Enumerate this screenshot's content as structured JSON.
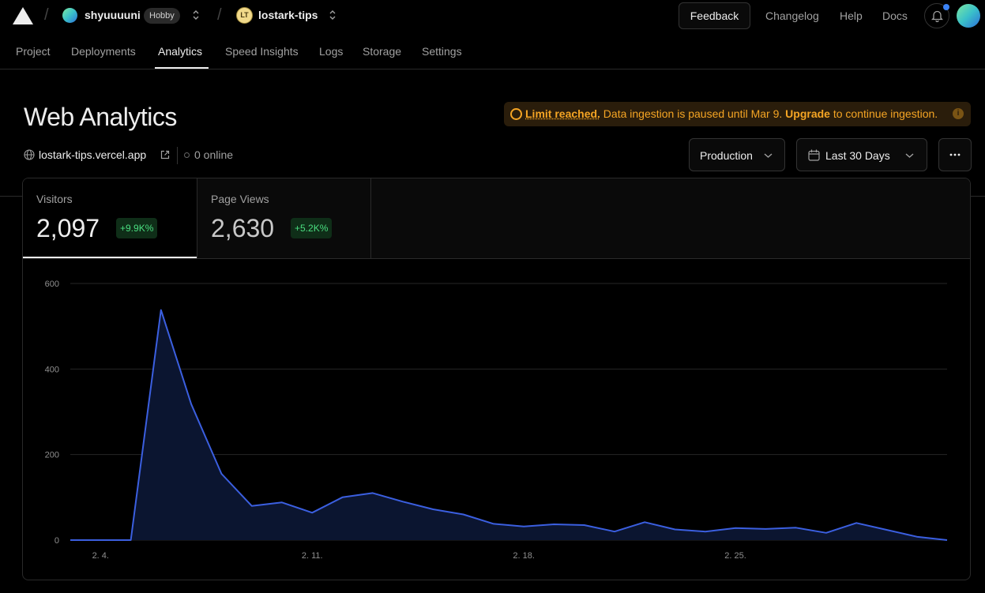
{
  "header": {
    "team": {
      "name": "shyuuuuni",
      "plan": "Hobby"
    },
    "project": {
      "name": "lostark-tips",
      "icon_text": "LT"
    },
    "links": {
      "feedback": "Feedback",
      "changelog": "Changelog",
      "help": "Help",
      "docs": "Docs"
    }
  },
  "tabs": [
    "Project",
    "Deployments",
    "Analytics",
    "Speed Insights",
    "Logs",
    "Storage",
    "Settings"
  ],
  "active_tab": "Analytics",
  "page": {
    "title": "Web Analytics",
    "domain": "lostark-tips.vercel.app",
    "online": "0 online"
  },
  "alert": {
    "strong": "Limit reached.",
    "text1": " Data ingestion is paused until Mar 9. ",
    "link": "Upgrade",
    "text2": " to continue ingestion.",
    "info": "i",
    "color": "#f5a524"
  },
  "filters": {
    "environment": "Production",
    "range": "Last 30 Days"
  },
  "metrics": [
    {
      "label": "Visitors",
      "value": "2,097",
      "change": "+9.9K%"
    },
    {
      "label": "Page Views",
      "value": "2,630",
      "change": "+5.2K%"
    }
  ],
  "colors": {
    "line": "#3b5fe0",
    "fill": "#0b1530",
    "positive": "#4ade80"
  },
  "chart_data": {
    "type": "area",
    "ylim": [
      0,
      600
    ],
    "yticks": [
      0,
      200,
      400,
      600
    ],
    "xticks": [
      "2. 4.",
      "2. 11.",
      "2. 18.",
      "2. 25."
    ],
    "xtick_index": [
      1,
      8,
      15,
      22
    ],
    "x": [
      "2. 3.",
      "2. 4.",
      "2. 5.",
      "2. 6.",
      "2. 7.",
      "2. 8.",
      "2. 9.",
      "2. 10.",
      "2. 11.",
      "2. 12.",
      "2. 13.",
      "2. 14.",
      "2. 15.",
      "2. 16.",
      "2. 17.",
      "2. 18.",
      "2. 19.",
      "2. 20.",
      "2. 21.",
      "2. 22.",
      "2. 23.",
      "2. 24.",
      "2. 25.",
      "2. 26.",
      "2. 27.",
      "2. 28.",
      "2. 29.",
      "3. 1.",
      "3. 2.",
      "3. 3."
    ],
    "series": [
      {
        "values": [
          0,
          0,
          0,
          538,
          318,
          155,
          80,
          88,
          64,
          100,
          110,
          90,
          72,
          60,
          38,
          32,
          37,
          35,
          20,
          42,
          25,
          20,
          28,
          26,
          29,
          17,
          40,
          24,
          8,
          0
        ]
      }
    ],
    "grid": true,
    "legend": "none"
  }
}
